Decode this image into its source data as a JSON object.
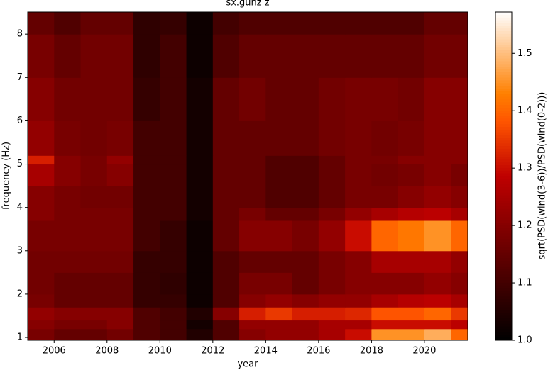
{
  "chart_data": {
    "type": "heatmap",
    "title": "sx.gunz z",
    "xlabel": "year",
    "ylabel": "frequency (Hz)",
    "colorbar_label": "sqrt(PSD(wind(3-6))/PSD(wind(0-2)))",
    "colormap": "gist_heat",
    "xlim": [
      2005,
      2021.64
    ],
    "xticks": [
      2006,
      2008,
      2010,
      2012,
      2014,
      2016,
      2018,
      2020
    ],
    "ylim": [
      0.935,
      8.51
    ],
    "yticks": [
      1,
      2,
      3,
      4,
      5,
      6,
      7,
      8
    ],
    "clim": [
      1.0,
      1.572
    ],
    "cticks": [
      {
        "value": 1,
        "label": "1.0"
      },
      1.1,
      1.2,
      1.3,
      1.4,
      1.5
    ],
    "xbins": [
      2005,
      2006,
      2007,
      2008,
      2009,
      2010,
      2011,
      2012,
      2013,
      2014,
      2015,
      2016,
      2017,
      2018,
      2019,
      2020,
      2021,
      2021.64
    ],
    "ybins": [
      0.935,
      1.2,
      1.4,
      1.7,
      2,
      2.5,
      3,
      3.7,
      4,
      4.5,
      5,
      5.2,
      6,
      7,
      8,
      8.51
    ],
    "z": [
      [
        1.18,
        1.15,
        1.15,
        1.17,
        1.12,
        1.1,
        1.05,
        1.12,
        1.2,
        1.22,
        1.22,
        1.25,
        1.3,
        1.45,
        1.45,
        1.48,
        1.4
      ],
      [
        1.2,
        1.18,
        1.18,
        1.2,
        1.12,
        1.1,
        1.03,
        1.12,
        1.22,
        1.22,
        1.22,
        1.25,
        1.25,
        1.3,
        1.3,
        1.3,
        1.28
      ],
      [
        1.22,
        1.2,
        1.2,
        1.2,
        1.12,
        1.1,
        1.05,
        1.2,
        1.32,
        1.35,
        1.32,
        1.32,
        1.33,
        1.38,
        1.38,
        1.4,
        1.35
      ],
      [
        1.18,
        1.15,
        1.15,
        1.15,
        1.08,
        1.08,
        1.02,
        1.12,
        1.2,
        1.22,
        1.2,
        1.22,
        1.22,
        1.25,
        1.27,
        1.28,
        1.25
      ],
      [
        1.17,
        1.15,
        1.15,
        1.15,
        1.08,
        1.07,
        1.02,
        1.12,
        1.18,
        1.18,
        1.15,
        1.18,
        1.2,
        1.2,
        1.2,
        1.22,
        1.2
      ],
      [
        1.17,
        1.17,
        1.17,
        1.17,
        1.08,
        1.08,
        1.02,
        1.12,
        1.15,
        1.15,
        1.15,
        1.18,
        1.2,
        1.25,
        1.25,
        1.25,
        1.22
      ],
      [
        1.18,
        1.18,
        1.18,
        1.18,
        1.1,
        1.08,
        1.02,
        1.15,
        1.2,
        1.2,
        1.18,
        1.22,
        1.3,
        1.4,
        1.42,
        1.45,
        1.4
      ],
      [
        1.2,
        1.18,
        1.18,
        1.18,
        1.1,
        1.1,
        1.03,
        1.15,
        1.18,
        1.15,
        1.15,
        1.18,
        1.22,
        1.25,
        1.27,
        1.28,
        1.25
      ],
      [
        1.2,
        1.18,
        1.17,
        1.17,
        1.1,
        1.1,
        1.03,
        1.15,
        1.15,
        1.12,
        1.12,
        1.15,
        1.18,
        1.18,
        1.2,
        1.22,
        1.2
      ],
      [
        1.25,
        1.2,
        1.18,
        1.2,
        1.1,
        1.1,
        1.03,
        1.15,
        1.15,
        1.12,
        1.12,
        1.15,
        1.18,
        1.17,
        1.18,
        1.2,
        1.18
      ],
      [
        1.32,
        1.2,
        1.18,
        1.22,
        1.1,
        1.1,
        1.03,
        1.15,
        1.15,
        1.12,
        1.12,
        1.15,
        1.18,
        1.18,
        1.2,
        1.2,
        1.2
      ],
      [
        1.22,
        1.18,
        1.17,
        1.18,
        1.1,
        1.1,
        1.03,
        1.15,
        1.15,
        1.15,
        1.15,
        1.17,
        1.18,
        1.17,
        1.18,
        1.2,
        1.2
      ],
      [
        1.2,
        1.17,
        1.17,
        1.17,
        1.08,
        1.1,
        1.03,
        1.15,
        1.17,
        1.15,
        1.15,
        1.17,
        1.18,
        1.18,
        1.17,
        1.2,
        1.2
      ],
      [
        1.18,
        1.15,
        1.17,
        1.17,
        1.07,
        1.1,
        1.02,
        1.12,
        1.15,
        1.15,
        1.15,
        1.15,
        1.15,
        1.15,
        1.15,
        1.17,
        1.17
      ],
      [
        1.15,
        1.12,
        1.15,
        1.15,
        1.07,
        1.08,
        1.02,
        1.1,
        1.12,
        1.12,
        1.12,
        1.12,
        1.12,
        1.12,
        1.12,
        1.15,
        1.15
      ]
    ]
  }
}
